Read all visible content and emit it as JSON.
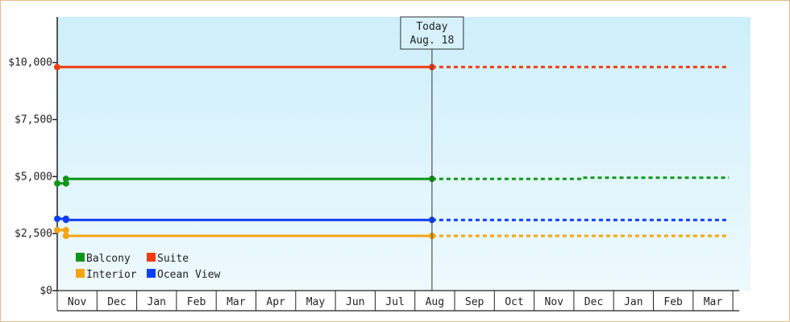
{
  "chart_data": {
    "type": "line",
    "title": "",
    "xlabel": "",
    "ylabel": "",
    "categories": [
      "Nov",
      "Dec",
      "Jan",
      "Feb",
      "Mar",
      "Apr",
      "May",
      "Jun",
      "Jul",
      "Aug",
      "Sep",
      "Oct",
      "Nov",
      "Dec",
      "Jan",
      "Feb",
      "Mar"
    ],
    "ylim": [
      0,
      12000
    ],
    "yticks": [
      0,
      2500,
      5000,
      7500,
      10000
    ],
    "ytick_labels": [
      "$0",
      "$2,500",
      "$5,000",
      "$7,500",
      "$10,000"
    ],
    "x_domain": [
      0,
      16.9
    ],
    "today": {
      "line1": "Today",
      "line2": "Aug. 18",
      "x": 9.43
    },
    "grid": false,
    "legend_position": "bottom-left",
    "colors": {
      "background_top": "#cdeffb",
      "background_bottom": "#eef9fd",
      "axis": "#222222",
      "frame": "#e7b98a"
    },
    "series": [
      {
        "name": "Balcony",
        "color": "#10961a",
        "points": [
          [
            0.0,
            4700
          ],
          [
            0.22,
            4700
          ],
          [
            0.22,
            4900
          ],
          [
            9.43,
            4900
          ]
        ],
        "markers": [
          [
            0.0,
            4700
          ],
          [
            0.22,
            4700
          ],
          [
            0.22,
            4900
          ],
          [
            9.43,
            4900
          ]
        ],
        "forecast": [
          [
            9.43,
            4900
          ],
          [
            13.2,
            4900
          ],
          [
            13.2,
            4950
          ],
          [
            16.9,
            4950
          ]
        ]
      },
      {
        "name": "Suite",
        "color": "#f03c12",
        "points": [
          [
            0.0,
            9800
          ],
          [
            9.43,
            9800
          ]
        ],
        "markers": [
          [
            0.0,
            9800
          ],
          [
            9.43,
            9800
          ]
        ],
        "forecast": [
          [
            9.43,
            9800
          ],
          [
            16.9,
            9800
          ]
        ]
      },
      {
        "name": "Interior",
        "color": "#f6a411",
        "points": [
          [
            0.0,
            2650
          ],
          [
            0.22,
            2650
          ],
          [
            0.22,
            2400
          ],
          [
            9.43,
            2400
          ]
        ],
        "markers": [
          [
            0.0,
            2650
          ],
          [
            0.22,
            2650
          ],
          [
            0.22,
            2400
          ],
          [
            9.43,
            2400
          ]
        ],
        "forecast": [
          [
            9.43,
            2400
          ],
          [
            16.9,
            2400
          ]
        ]
      },
      {
        "name": "Ocean View",
        "color": "#0f3ff2",
        "points": [
          [
            0.0,
            3150
          ],
          [
            0.22,
            3150
          ],
          [
            0.22,
            3100
          ],
          [
            9.43,
            3100
          ]
        ],
        "markers": [
          [
            0.0,
            3150
          ],
          [
            0.22,
            3150
          ],
          [
            0.22,
            3100
          ],
          [
            9.43,
            3100
          ]
        ],
        "forecast": [
          [
            9.43,
            3100
          ],
          [
            16.9,
            3100
          ]
        ]
      }
    ]
  }
}
